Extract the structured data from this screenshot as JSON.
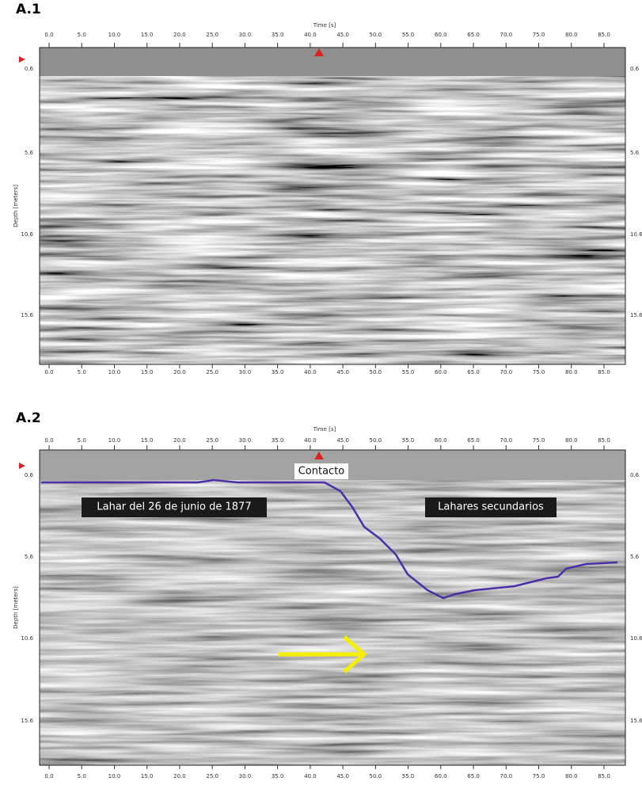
{
  "panels": [
    {
      "label": "A.1",
      "x_axis_title": "Time [s]",
      "y_axis_title": "Depth [meters]",
      "xticks": [
        "0.0",
        "5.0",
        "10.0",
        "15.0",
        "20.0",
        "25.0",
        "30.0",
        "35.0",
        "40.0",
        "45.0",
        "50.0",
        "55.0",
        "60.0",
        "65.0",
        "70.0",
        "75.0",
        "80.0",
        "85.0"
      ],
      "yticks": [
        "0.6",
        "5.6",
        "10.6",
        "15.6"
      ],
      "annotations": []
    },
    {
      "label": "A.2",
      "x_axis_title": "Time [s]",
      "y_axis_title": "Depth [meters]",
      "xticks": [
        "0.0",
        "5.0",
        "10.0",
        "15.0",
        "20.0",
        "25.0",
        "30.0",
        "35.0",
        "40.0",
        "45.0",
        "50.0",
        "55.0",
        "60.0",
        "65.0",
        "70.0",
        "75.0",
        "80.0",
        "85.0"
      ],
      "yticks": [
        "0.6",
        "5.6",
        "10.6",
        "15.6"
      ],
      "annotations": [
        "Contacto",
        "Lahar  del 26 de  junio de 1877",
        "Lahares secundarios"
      ]
    }
  ]
}
